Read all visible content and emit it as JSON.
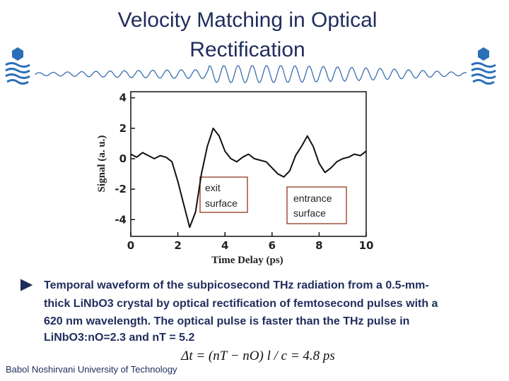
{
  "title": [
    "Velocity Matching in Optical",
    "Rectification"
  ],
  "chart_data": {
    "type": "line",
    "x_label": "Time Delay (ps)",
    "y_label": "Signal (a. u.)",
    "x": [
      0,
      0.25,
      0.5,
      0.75,
      1,
      1.25,
      1.5,
      1.75,
      2,
      2.25,
      2.5,
      2.75,
      3,
      3.25,
      3.5,
      3.75,
      4,
      4.25,
      4.5,
      4.75,
      5,
      5.25,
      5.5,
      5.75,
      6,
      6.25,
      6.5,
      6.75,
      7,
      7.25,
      7.5,
      7.75,
      8,
      8.25,
      8.5,
      8.75,
      9,
      9.25,
      9.5,
      9.75,
      10
    ],
    "series": [
      {
        "color": "#111111",
        "values": [
          0.3,
          0.1,
          0.4,
          0.2,
          0,
          0.2,
          0.1,
          -0.2,
          -1.5,
          -3,
          -4.5,
          -3.5,
          -1,
          0.8,
          2,
          1.5,
          0.5,
          0,
          -0.2,
          0.1,
          0.3,
          0,
          -0.1,
          -0.2,
          -0.6,
          -1,
          -1.2,
          -0.8,
          0.2,
          0.8,
          1.5,
          0.8,
          -0.3,
          -0.9,
          -0.6,
          -0.2,
          0,
          0.1,
          0.3,
          0.2,
          0.5
        ]
      }
    ],
    "xlim": [
      0,
      10
    ],
    "xticks": [
      0,
      2,
      4,
      6,
      8,
      10
    ],
    "ylim": [
      -5.1,
      4.4
    ],
    "yticks": [
      4,
      2,
      0,
      -2,
      -4
    ],
    "annotations": [
      [
        "exit",
        "surface"
      ],
      [
        "entrance",
        "surface"
      ]
    ]
  },
  "bullet": [
    "Temporal waveform of the subpicosecond THz radiation from a 0.5-mm-",
    "thick LiNbO3 crystal by optical rectification of femtosecond pulses with a",
    "620 nm wavelength. The optical pulse is faster than the THz pulse in",
    "LiNbO3:nO=2.3 and nT = 5.2"
  ],
  "formula": "Δt = (nT − nO) l / c = 4.8 ps",
  "footer": "Babol Noshirvani University of Technology"
}
